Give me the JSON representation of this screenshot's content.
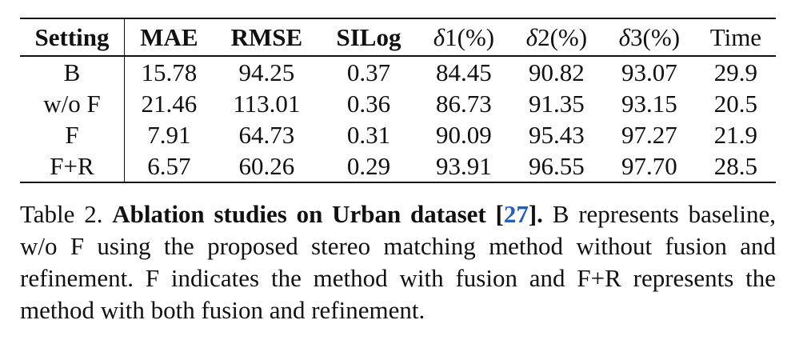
{
  "table": {
    "headers": [
      "Setting",
      "MAE",
      "RMSE",
      "SILog",
      "δ1(%)",
      "δ2(%)",
      "δ3(%)",
      "Time"
    ],
    "rows": [
      [
        "B",
        "15.78",
        "94.25",
        "0.37",
        "84.45",
        "90.82",
        "93.07",
        "29.9"
      ],
      [
        "w/o F",
        "21.46",
        "113.01",
        "0.36",
        "86.73",
        "91.35",
        "93.15",
        "20.5"
      ],
      [
        "F",
        "7.91",
        "64.73",
        "0.31",
        "90.09",
        "95.43",
        "97.27",
        "21.9"
      ],
      [
        "F+R",
        "6.57",
        "60.26",
        "0.29",
        "93.91",
        "96.55",
        "97.70",
        "28.5"
      ]
    ]
  },
  "caption": {
    "label": "Table 2.",
    "bold_title": "Ablation studies on Urban dataset [",
    "ref": "27",
    "bold_close": "].",
    "text": " B represents baseline, w/o F using the proposed stereo matching method without fusion and refinement. F indicates the method with fusion and F+R represents the method with both fusion and refinement."
  },
  "colors": {
    "ref_link": "#1f5fbf",
    "text": "#111111"
  }
}
